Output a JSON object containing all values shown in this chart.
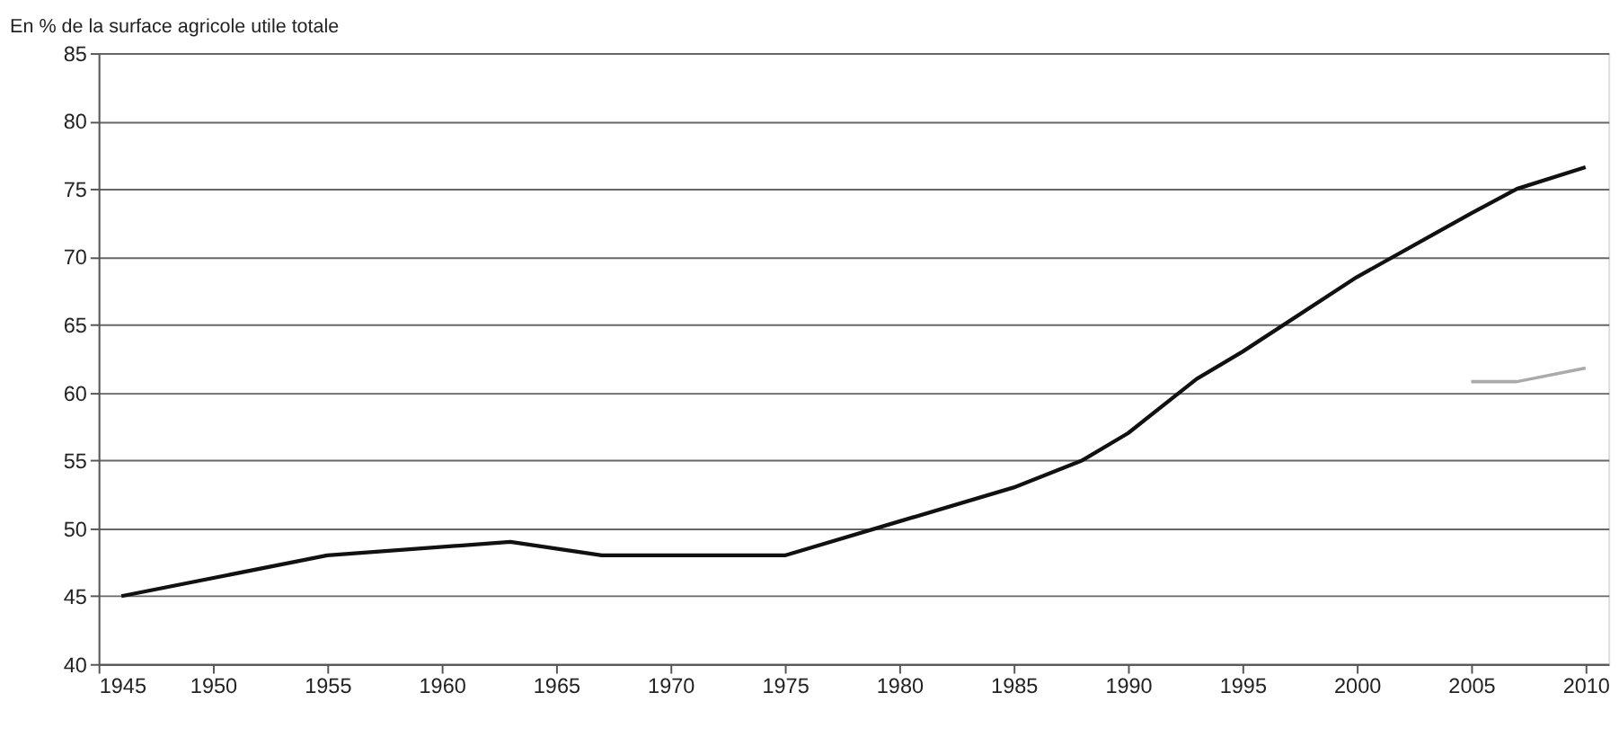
{
  "chart_data": {
    "type": "line",
    "ylabel": "En % de la surface agricole utile totale",
    "series": [
      {
        "color": "#111111",
        "x": [
          1946,
          1955,
          1963,
          1967,
          1975,
          1980,
          1985,
          1988,
          1990,
          1993,
          1995,
          2000,
          2005,
          2007,
          2010
        ],
        "values": [
          45,
          48,
          49,
          48,
          48,
          50.5,
          53,
          55,
          57,
          61,
          63,
          68.5,
          73.2,
          75,
          76.6
        ]
      },
      {
        "color": "#aaaaaa",
        "x": [
          2005,
          2007,
          2010
        ],
        "values": [
          60.8,
          60.8,
          61.8
        ]
      }
    ],
    "xlim": [
      1945,
      2011
    ],
    "xticks": [
      1945,
      1950,
      1955,
      1960,
      1965,
      1970,
      1975,
      1980,
      1985,
      1990,
      1995,
      2000,
      2005,
      2010
    ],
    "ylim": [
      40,
      85
    ],
    "yticks": [
      40,
      45,
      50,
      55,
      60,
      65,
      70,
      75,
      80,
      85
    ],
    "grid": "y",
    "marker": "none",
    "line_style": "solid"
  }
}
